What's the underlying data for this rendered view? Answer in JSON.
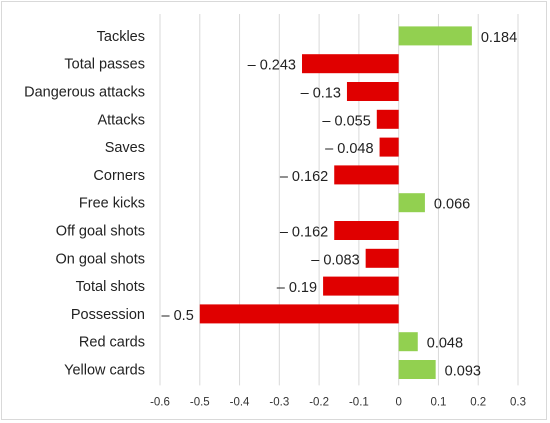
{
  "chart_data": {
    "type": "bar",
    "orientation": "horizontal",
    "categories": [
      "Tackles",
      "Total passes",
      "Dangerous attacks",
      "Attacks",
      "Saves",
      "Corners",
      "Free kicks",
      "Off goal shots",
      "On goal shots",
      "Total shots",
      "Possession",
      "Red cards",
      "Yellow cards"
    ],
    "values": [
      0.184,
      -0.243,
      -0.13,
      -0.055,
      -0.048,
      -0.162,
      0.066,
      -0.162,
      -0.083,
      -0.19,
      -0.5,
      0.048,
      0.093
    ],
    "value_labels": [
      "0.184",
      "– 0.243",
      "– 0.13",
      "– 0.055",
      "– 0.048",
      "– 0.162",
      "0.066",
      "– 0.162",
      "– 0.083",
      "– 0.19",
      "– 0.5",
      "0.048",
      "0.093"
    ],
    "xlim": [
      -0.6,
      0.3
    ],
    "x_ticks": [
      "-0.6",
      "-0.5",
      "-0.4",
      "-0.3",
      "-0.2",
      "-0.1",
      "0",
      "0.1",
      "0.2",
      "0.3"
    ],
    "title": "",
    "xlabel": "",
    "ylabel": "",
    "grid": "vertical",
    "colors": {
      "positive": "#92d050",
      "negative": "#e00000",
      "grid": "#d9d9d9",
      "text": "#222222"
    }
  }
}
